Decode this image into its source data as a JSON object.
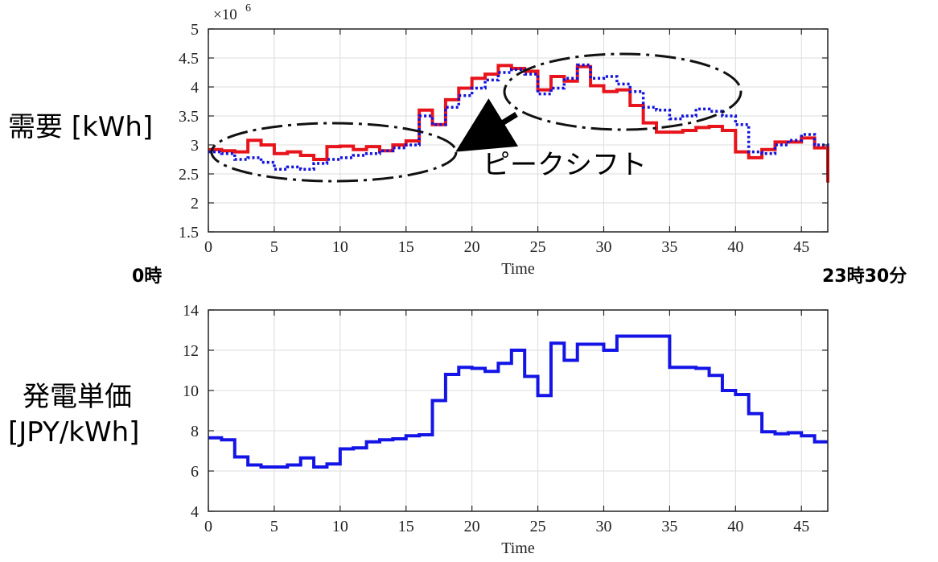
{
  "labels": {
    "demand_label": "需要 [kWh]",
    "price_label_line1": "発電単価",
    "price_label_line2": "[JPY/kWh]",
    "start_label": "0時",
    "end_label": "23時30分",
    "peak_shift": "ピークシフト"
  },
  "chart_data": [
    {
      "type": "line",
      "xlabel": "Time",
      "ylabel": "需要 [kWh]",
      "y_multiplier_label": "×10",
      "y_multiplier_exp": "6",
      "xlim": [
        0,
        47
      ],
      "ylim": [
        1.5,
        5
      ],
      "xticks": [
        0,
        5,
        10,
        15,
        20,
        25,
        30,
        35,
        40,
        45
      ],
      "yticks": [
        1.5,
        2,
        2.5,
        3,
        3.5,
        4,
        4.5,
        5
      ],
      "ytick_labels": [
        "1.5",
        "2",
        "2.5",
        "3",
        "3.5",
        "4",
        "4.5",
        "5"
      ],
      "grid": true,
      "annotation": "ピークシフト",
      "series": [
        {
          "style": "solid",
          "color": "#e8141b",
          "x": [
            0,
            1,
            2,
            3,
            4,
            5,
            6,
            7,
            8,
            9,
            10,
            11,
            12,
            13,
            14,
            15,
            16,
            17,
            18,
            19,
            20,
            21,
            22,
            23,
            24,
            25,
            26,
            27,
            28,
            29,
            30,
            31,
            32,
            33,
            34,
            35,
            36,
            37,
            38,
            39,
            40,
            41,
            42,
            43,
            44,
            45,
            46,
            47
          ],
          "values": [
            2.92,
            2.9,
            2.88,
            3.08,
            3.0,
            2.85,
            2.88,
            2.82,
            2.75,
            2.97,
            2.98,
            2.92,
            2.97,
            2.9,
            3.0,
            3.07,
            3.6,
            3.35,
            3.78,
            3.98,
            4.15,
            4.22,
            4.37,
            4.32,
            4.27,
            3.95,
            4.18,
            4.1,
            4.35,
            4.02,
            3.92,
            3.95,
            3.68,
            3.38,
            3.22,
            3.22,
            3.25,
            3.3,
            3.32,
            3.25,
            2.88,
            2.78,
            2.92,
            3.05,
            3.05,
            3.12,
            2.95,
            2.35
          ]
        },
        {
          "style": "dotted",
          "color": "#1212dd",
          "x": [
            0,
            1,
            2,
            3,
            4,
            5,
            6,
            7,
            8,
            9,
            10,
            11,
            12,
            13,
            14,
            15,
            16,
            17,
            18,
            19,
            20,
            21,
            22,
            23,
            24,
            25,
            26,
            27,
            28,
            29,
            30,
            31,
            32,
            33,
            34,
            35,
            36,
            37,
            38,
            39,
            40,
            41,
            42,
            43,
            44,
            45,
            46,
            47
          ],
          "values": [
            2.88,
            2.85,
            2.75,
            2.78,
            2.7,
            2.58,
            2.62,
            2.58,
            2.68,
            2.75,
            2.78,
            2.82,
            2.85,
            2.9,
            2.95,
            3.0,
            3.5,
            3.35,
            3.65,
            3.85,
            3.98,
            4.12,
            4.25,
            4.3,
            4.22,
            3.88,
            3.98,
            4.15,
            4.38,
            4.15,
            4.18,
            4.05,
            3.92,
            3.65,
            3.6,
            3.45,
            3.5,
            3.62,
            3.58,
            3.5,
            3.35,
            2.88,
            2.85,
            3.0,
            3.08,
            3.18,
            3.0,
            2.98
          ]
        }
      ]
    },
    {
      "type": "line",
      "xlabel": "Time",
      "ylabel": "発電単価 [JPY/kWh]",
      "xlim": [
        0,
        47
      ],
      "ylim": [
        4,
        14
      ],
      "xticks": [
        0,
        5,
        10,
        15,
        20,
        25,
        30,
        35,
        40,
        45
      ],
      "yticks": [
        4,
        6,
        8,
        10,
        12,
        14
      ],
      "ytick_labels": [
        "4",
        "6",
        "8",
        "10",
        "12",
        "14"
      ],
      "grid": true,
      "series": [
        {
          "style": "solid",
          "color": "#1414e6",
          "x": [
            0,
            1,
            2,
            3,
            4,
            5,
            6,
            7,
            8,
            9,
            10,
            11,
            12,
            13,
            14,
            15,
            16,
            17,
            18,
            19,
            20,
            21,
            22,
            23,
            24,
            25,
            26,
            27,
            28,
            29,
            30,
            31,
            32,
            33,
            34,
            35,
            36,
            37,
            38,
            39,
            40,
            41,
            42,
            43,
            44,
            45,
            46,
            47
          ],
          "values": [
            7.65,
            7.55,
            6.7,
            6.3,
            6.2,
            6.2,
            6.3,
            6.65,
            6.2,
            6.35,
            7.1,
            7.15,
            7.45,
            7.55,
            7.6,
            7.75,
            7.8,
            9.5,
            10.8,
            11.15,
            11.1,
            10.95,
            11.35,
            12.0,
            10.7,
            9.75,
            12.35,
            11.5,
            12.3,
            12.3,
            12.0,
            12.7,
            12.7,
            12.7,
            12.7,
            11.15,
            11.15,
            11.1,
            10.75,
            10.0,
            9.8,
            8.85,
            7.95,
            7.85,
            7.9,
            7.75,
            7.45,
            7.45
          ]
        }
      ]
    }
  ]
}
